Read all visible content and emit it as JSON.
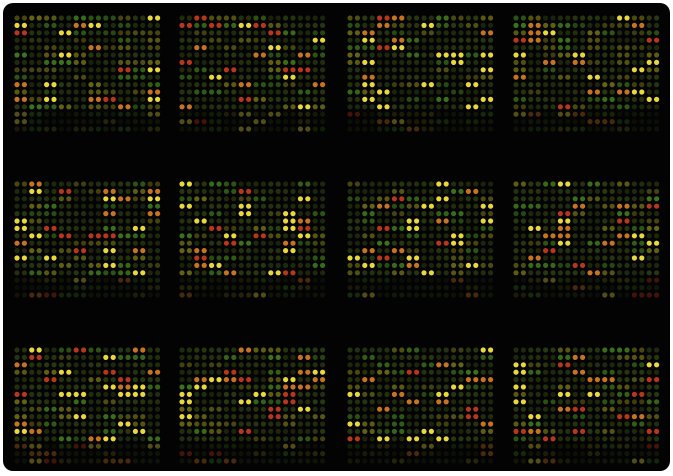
{
  "image": {
    "subject": "microarray",
    "background_color": "#030303",
    "border_color": "#ffffff",
    "block_grid": {
      "rows": 3,
      "columns": 4
    },
    "spots_per_block": {
      "rows": 16,
      "columns": 20
    },
    "spot_colors": {
      "dim_green": "#2a3a12",
      "green": "#3f7a1c",
      "olive": "#6a6a14",
      "yellow": "#e8d838",
      "orange": "#c8741e",
      "red": "#b8361a"
    }
  }
}
